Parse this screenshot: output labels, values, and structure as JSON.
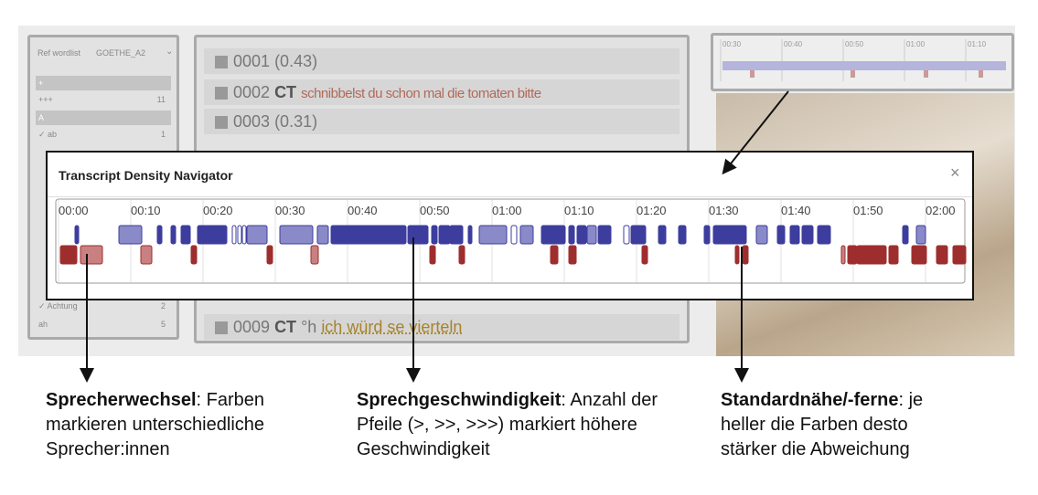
{
  "left_panel": {
    "label": "Ref wordlist",
    "selected": "GOETHE_A2",
    "rows": [
      {
        "label": "+"
      },
      {
        "label": "+++",
        "count": 11
      },
      {
        "label": "A"
      },
      {
        "label": "✓ ab",
        "count": 1
      },
      {
        "label": "✓ Achtung",
        "count": 2
      },
      {
        "label": "ah",
        "count": 5
      }
    ]
  },
  "transcript": {
    "lines": [
      {
        "id": "0001",
        "text": "(0.43)"
      },
      {
        "id": "0002",
        "speaker": "CT",
        "text": "schnibbelst du schon mal die tomaten bitte"
      },
      {
        "id": "0003",
        "text": "(0.31)"
      },
      {
        "id": "0009",
        "speaker": "CT",
        "prefix": "°h",
        "text": "ich würd se vierteln"
      }
    ]
  },
  "mini_timeline": {
    "ticks": [
      "00:30",
      "00:40",
      "00:50",
      "01:00",
      "01:10"
    ]
  },
  "modal": {
    "title": "Transcript Density Navigator",
    "close": "×",
    "ticks": [
      "00:00",
      "00:10",
      "00:20",
      "00:30",
      "00:40",
      "00:50",
      "01:00",
      "01:10",
      "01:20",
      "01:30",
      "01:40",
      "01:50",
      "02:00"
    ]
  },
  "annotations": [
    {
      "term": "Sprecherwechsel",
      "text": ": Farben markieren unterschiedliche Sprecher:innen"
    },
    {
      "term": "Sprechgeschwindigkeit",
      "text": ": Anzahl der Pfeile (>, >>, >>>) markiert höhere Geschwindigkeit"
    },
    {
      "term": "Standardnähe/-ferne",
      "text": ": je heller die Farben desto stärker die Abweichung"
    }
  ]
}
